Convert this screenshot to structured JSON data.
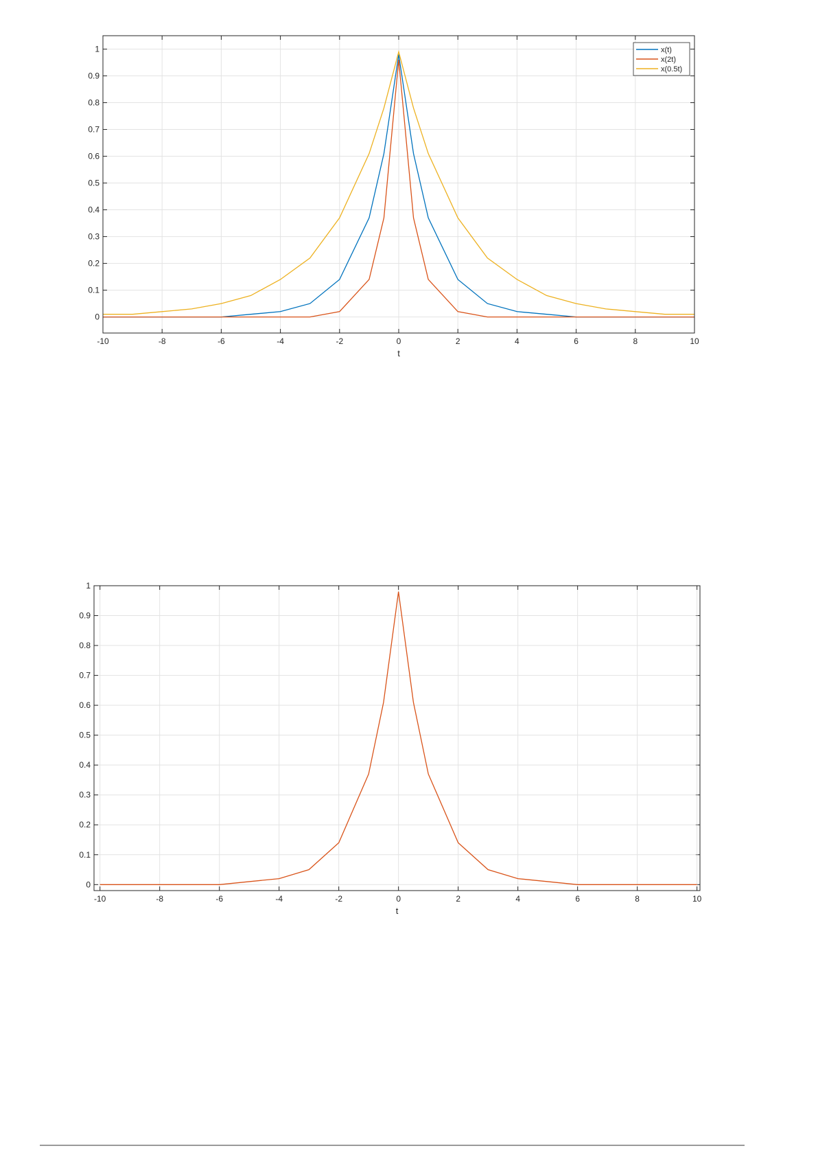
{
  "chart_data": [
    {
      "type": "line",
      "x_label": "t",
      "x": [
        -10,
        -9,
        -8,
        -7,
        -6,
        -5,
        -4,
        -3,
        -2,
        -1,
        -0.5,
        0,
        0.5,
        1,
        2,
        3,
        4,
        5,
        6,
        7,
        8,
        9,
        10
      ],
      "series": [
        {
          "name": "x(t)",
          "color": "#0072bd",
          "values": [
            0,
            0,
            0,
            0,
            0,
            0.01,
            0.02,
            0.05,
            0.14,
            0.37,
            0.61,
            0.98,
            0.61,
            0.37,
            0.14,
            0.05,
            0.02,
            0.01,
            0,
            0,
            0,
            0,
            0
          ]
        },
        {
          "name": "x(2t)",
          "color": "#d95319",
          "values": [
            0,
            0,
            0,
            0,
            0,
            0,
            0,
            0,
            0.02,
            0.14,
            0.37,
            0.96,
            0.37,
            0.14,
            0.02,
            0,
            0,
            0,
            0,
            0,
            0,
            0,
            0
          ]
        },
        {
          "name": "x(0.5t)",
          "color": "#edb120",
          "values": [
            0.01,
            0.01,
            0.02,
            0.03,
            0.05,
            0.08,
            0.14,
            0.22,
            0.37,
            0.61,
            0.78,
            0.99,
            0.78,
            0.61,
            0.37,
            0.22,
            0.14,
            0.08,
            0.05,
            0.03,
            0.02,
            0.01,
            0.01
          ]
        }
      ],
      "xlim": [
        -10,
        10
      ],
      "ylim": [
        -0.06,
        1.05
      ],
      "xticks": [
        -10,
        -8,
        -6,
        -4,
        -2,
        0,
        2,
        4,
        6,
        8,
        10
      ],
      "yticks": [
        0,
        0.1,
        0.2,
        0.3,
        0.4,
        0.5,
        0.6,
        0.7,
        0.8,
        0.9,
        1
      ],
      "grid": true,
      "legend": "northeast"
    },
    {
      "type": "line",
      "x_label": "t",
      "x": [
        -10,
        -9,
        -8,
        -7,
        -6,
        -5,
        -4,
        -3,
        -2,
        -1,
        -0.5,
        0,
        0.5,
        1,
        2,
        3,
        4,
        5,
        6,
        7,
        8,
        9,
        10
      ],
      "color": "#d95319",
      "values": [
        0,
        0,
        0,
        0,
        0,
        0.01,
        0.02,
        0.05,
        0.14,
        0.37,
        0.61,
        0.98,
        0.61,
        0.37,
        0.14,
        0.05,
        0.02,
        0.01,
        0,
        0,
        0,
        0,
        0
      ],
      "xlim": [
        -10.2,
        10.1
      ],
      "ylim": [
        -0.02,
        1
      ],
      "xticks": [
        -10,
        -8,
        -6,
        -4,
        -2,
        0,
        2,
        4,
        6,
        8,
        10
      ],
      "yticks": [
        0,
        0.1,
        0.2,
        0.3,
        0.4,
        0.5,
        0.6,
        0.7,
        0.8,
        0.9,
        1
      ],
      "grid": true
    }
  ]
}
